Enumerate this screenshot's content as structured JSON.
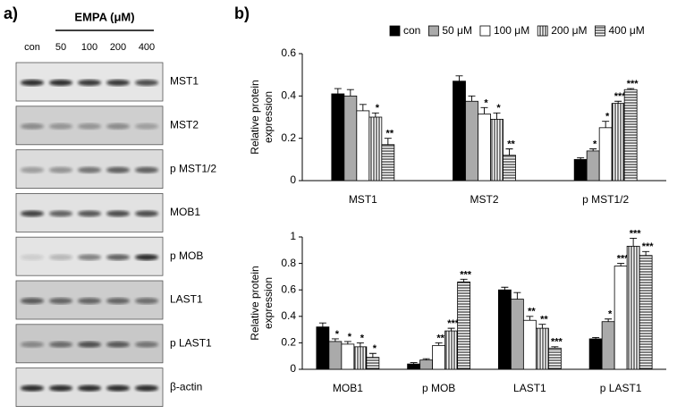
{
  "blot": {
    "panel_label": "a)",
    "treatment": "EMPA (μM)",
    "lanes": [
      "con",
      "50",
      "100",
      "200",
      "400"
    ],
    "proteins": [
      "MST1",
      "MST2",
      "p MST1/2",
      "MOB1",
      "p MOB",
      "LAST1",
      "p LAST1",
      "β-actin"
    ]
  },
  "panel_label_b": "b)",
  "chart_data": [
    {
      "type": "bar",
      "ylabel": [
        "Relative protein",
        "expression"
      ],
      "categories": [
        "MST1",
        "MST2",
        "p MST1/2"
      ],
      "ylim": [
        0,
        0.6
      ],
      "yticks": [
        0,
        0.2,
        0.4,
        0.6
      ],
      "legend": "top",
      "series": [
        {
          "name": "con",
          "color": "#000000",
          "values": [
            0.41,
            0.47,
            0.1
          ],
          "errors": [
            0.025,
            0.025,
            0.008
          ],
          "annotations": [
            null,
            null,
            null
          ]
        },
        {
          "name": "50 μM",
          "color": "#aaaaaa",
          "values": [
            0.4,
            0.375,
            0.14
          ],
          "errors": [
            0.03,
            0.025,
            0.01
          ],
          "annotations": [
            null,
            null,
            "*"
          ]
        },
        {
          "name": "100 μM",
          "color": "#ffffff",
          "values": [
            0.33,
            0.315,
            0.25
          ],
          "errors": [
            0.03,
            0.03,
            0.03
          ],
          "annotations": [
            null,
            "*",
            "*"
          ]
        },
        {
          "name": "200 μM",
          "color": "#000000",
          "pattern": "vertical",
          "values": [
            0.3,
            0.29,
            0.365
          ],
          "errors": [
            0.02,
            0.03,
            0.01
          ],
          "annotations": [
            "*",
            "*",
            "***"
          ]
        },
        {
          "name": "400 μM",
          "color": "#000000",
          "pattern": "horizontal",
          "values": [
            0.17,
            0.12,
            0.43
          ],
          "errors": [
            0.03,
            0.03,
            0.005
          ],
          "annotations": [
            "**",
            "**",
            "***"
          ]
        }
      ]
    },
    {
      "type": "bar",
      "ylabel": [
        "Relative protein",
        "expression"
      ],
      "categories": [
        "MOB1",
        "p MOB",
        "LAST1",
        "p LAST1"
      ],
      "ylim": [
        0,
        1
      ],
      "yticks": [
        0,
        0.2,
        0.4,
        0.6,
        0.8,
        1
      ],
      "series": [
        {
          "color": "#000000",
          "values": [
            0.32,
            0.04,
            0.6,
            0.23
          ],
          "errors": [
            0.03,
            0.01,
            0.02,
            0.01
          ],
          "annotations": [
            null,
            null,
            null,
            null
          ]
        },
        {
          "color": "#aaaaaa",
          "values": [
            0.21,
            0.07,
            0.53,
            0.36
          ],
          "errors": [
            0.02,
            0.01,
            0.05,
            0.02
          ],
          "annotations": [
            "*",
            null,
            null,
            "*"
          ]
        },
        {
          "color": "#ffffff",
          "values": [
            0.19,
            0.18,
            0.37,
            0.78
          ],
          "errors": [
            0.02,
            0.02,
            0.03,
            0.02
          ],
          "annotations": [
            "*",
            "**",
            "**",
            "***"
          ]
        },
        {
          "color": "#000000",
          "pattern": "vertical",
          "values": [
            0.17,
            0.29,
            0.31,
            0.93
          ],
          "errors": [
            0.03,
            0.02,
            0.03,
            0.06
          ],
          "annotations": [
            "*",
            "***",
            "**",
            "***"
          ]
        },
        {
          "color": "#000000",
          "pattern": "horizontal",
          "values": [
            0.09,
            0.66,
            0.16,
            0.86
          ],
          "errors": [
            0.03,
            0.02,
            0.01,
            0.03
          ],
          "annotations": [
            "*",
            "***",
            "***",
            "***"
          ]
        }
      ]
    }
  ]
}
